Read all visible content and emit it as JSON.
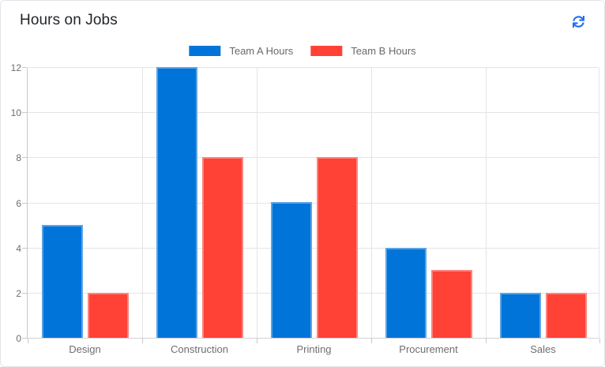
{
  "header": {
    "title": "Hours on Jobs",
    "refresh_icon": "refresh-icon",
    "accent_color": "#1b6ff2"
  },
  "chart_data": {
    "type": "bar",
    "title": "Hours on Jobs",
    "categories": [
      "Design",
      "Construction",
      "Printing",
      "Procurement",
      "Sales"
    ],
    "series": [
      {
        "name": "Team A Hours",
        "color": "#0074D9",
        "values": [
          5,
          12,
          6,
          4,
          2
        ]
      },
      {
        "name": "Team B Hours",
        "color": "#FF4136",
        "values": [
          2,
          8,
          8,
          3,
          2
        ]
      }
    ],
    "xlabel": "",
    "ylabel": "",
    "ylim": [
      0,
      12
    ],
    "yticks": [
      0,
      2,
      4,
      6,
      8,
      10,
      12
    ],
    "grid": true,
    "legend_position": "top"
  },
  "colors": {
    "grid": "#e4e4e4",
    "axis": "#c8c8c8",
    "tick_text": "#6e6e6e",
    "legend_text": "#666a6e",
    "title_text": "#212529",
    "card_border": "#e2e6ea"
  }
}
